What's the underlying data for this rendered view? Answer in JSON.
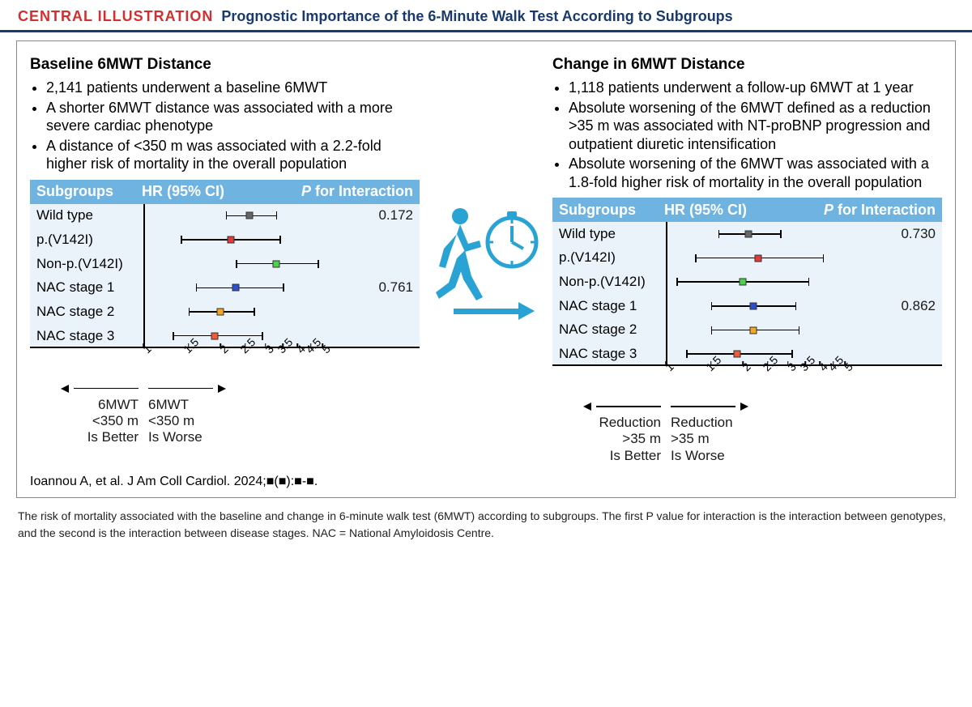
{
  "header": {
    "label": "CENTRAL ILLUSTRATION",
    "title": "Prognostic Importance of the 6-Minute Walk Test According to Subgroups"
  },
  "colors": {
    "accent_red": "#d32f2f",
    "navy": "#1a3a6e",
    "header_blue": "#6fb3e0",
    "row_bg": "#eaf3fa",
    "icon_blue": "#29a3d4"
  },
  "left": {
    "heading": "Baseline 6MWT Distance",
    "bullets": [
      "2,141 patients underwent a baseline 6MWT",
      "A shorter 6MWT distance was associated with a more severe cardiac phenotype",
      "A distance of <350 m was associated with a 2.2-fold higher risk of mortality in the overall population"
    ],
    "axis_label_left": [
      "6MWT",
      "<350 m",
      "Is Better"
    ],
    "axis_label_right": [
      "6MWT",
      "<350 m",
      "Is Worse"
    ]
  },
  "right": {
    "heading": "Change in 6MWT Distance",
    "bullets": [
      "1,118 patients underwent a follow-up 6MWT at 1 year",
      "Absolute worsening of the 6MWT defined as a reduction >35 m was associated with NT-proBNP progression and outpatient diuretic intensification",
      "Absolute worsening of the 6MWT was associated with a 1.8-fold higher risk of mortality in the overall population"
    ],
    "axis_label_left": [
      "Reduction",
      ">35 m",
      "Is Better"
    ],
    "axis_label_right": [
      "Reduction",
      ">35 m",
      "Is Worse"
    ]
  },
  "forest_headers": {
    "subgroups": "Subgroups",
    "hr": "HR (95% CI)",
    "p_for_interaction": "P for Interaction"
  },
  "subgroup_labels": [
    "Wild type",
    "p.(V142I)",
    "Non-p.(V142I)",
    "NAC stage 1",
    "NAC stage 2",
    "NAC stage 3"
  ],
  "axis": {
    "min": 1,
    "max": 5,
    "scale": "log",
    "ticks": [
      1,
      1.5,
      2,
      2.5,
      3,
      3.5,
      4,
      4.5,
      5
    ],
    "refline": 1
  },
  "forest_left": {
    "p_values": [
      "0.172",
      "",
      "",
      "0.761",
      "",
      ""
    ],
    "rows": [
      {
        "hr": 2.6,
        "lo": 2.1,
        "hi": 3.3,
        "color": "#666666"
      },
      {
        "hr": 2.2,
        "lo": 1.4,
        "hi": 3.4,
        "color": "#e03a3a"
      },
      {
        "hr": 3.3,
        "lo": 2.3,
        "hi": 4.8,
        "color": "#4bd14b"
      },
      {
        "hr": 2.3,
        "lo": 1.6,
        "hi": 3.5,
        "color": "#2a4fd1"
      },
      {
        "hr": 2.0,
        "lo": 1.5,
        "hi": 2.7,
        "color": "#f5a623"
      },
      {
        "hr": 1.9,
        "lo": 1.3,
        "hi": 2.9,
        "color": "#f05a3a"
      }
    ]
  },
  "forest_right": {
    "p_values": [
      "0.730",
      "",
      "",
      "0.862",
      "",
      ""
    ],
    "rows": [
      {
        "hr": 2.1,
        "lo": 1.6,
        "hi": 2.8,
        "color": "#666666"
      },
      {
        "hr": 2.3,
        "lo": 1.3,
        "hi": 4.1,
        "color": "#e03a3a"
      },
      {
        "hr": 2.0,
        "lo": 1.1,
        "hi": 3.6,
        "color": "#4bd14b"
      },
      {
        "hr": 2.2,
        "lo": 1.5,
        "hi": 3.2,
        "color": "#2a4fd1"
      },
      {
        "hr": 2.2,
        "lo": 1.5,
        "hi": 3.3,
        "color": "#f5a623"
      },
      {
        "hr": 1.9,
        "lo": 1.2,
        "hi": 3.1,
        "color": "#f05a3a"
      }
    ]
  },
  "citation": "Ioannou A, et al. J Am Coll Cardiol. 2024;■(■):■-■.",
  "caption": "The risk of mortality associated with the baseline and change in 6-minute walk test (6MWT) according to subgroups. The first P value for interaction is the interaction between genotypes, and the second is the interaction between disease stages. NAC = National Amyloidosis Centre."
}
